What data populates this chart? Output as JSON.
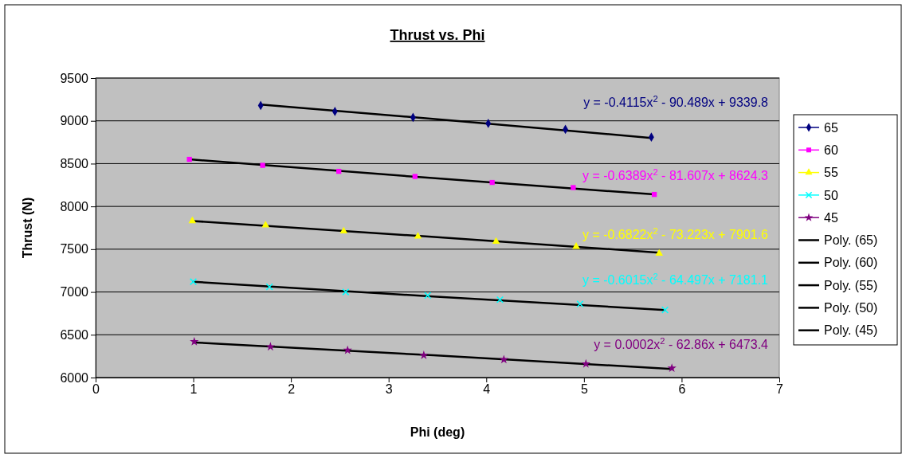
{
  "chart_data": {
    "type": "scatter",
    "title": "Thrust vs. Phi",
    "xlabel": "Phi (deg)",
    "ylabel": "Thrust (N)",
    "xlim": [
      0,
      7
    ],
    "xticks": [
      0,
      1,
      2,
      3,
      4,
      5,
      6,
      7
    ],
    "ylim": [
      6000,
      9500
    ],
    "yticks": [
      6000,
      6500,
      7000,
      7500,
      8000,
      8500,
      9000,
      9500
    ],
    "grid": "y",
    "legend": "right",
    "line_style": "solid",
    "series": [
      {
        "name": "65",
        "color": "#000080",
        "marker": "diamond",
        "x": [
          1.69,
          2.45,
          3.25,
          4.02,
          4.81,
          5.69
        ],
        "values": [
          9180,
          9110,
          9040,
          8970,
          8900,
          8810
        ]
      },
      {
        "name": "60",
        "color": "#ff00ff",
        "marker": "square",
        "x": [
          0.96,
          1.71,
          2.49,
          3.27,
          4.06,
          4.89,
          5.72
        ],
        "values": [
          8550,
          8480,
          8410,
          8350,
          8280,
          8220,
          8140
        ]
      },
      {
        "name": "55",
        "color": "#ffff00",
        "marker": "triangle",
        "x": [
          0.99,
          1.74,
          2.54,
          3.3,
          4.1,
          4.92,
          5.77
        ],
        "values": [
          7830,
          7780,
          7710,
          7650,
          7590,
          7530,
          7450
        ]
      },
      {
        "name": "50",
        "color": "#00ffff",
        "marker": "cross",
        "x": [
          1.0,
          1.78,
          2.56,
          3.4,
          4.14,
          4.96,
          5.83
        ],
        "values": [
          7120,
          7060,
          7000,
          6960,
          6910,
          6860,
          6790
        ]
      },
      {
        "name": "45",
        "color": "#800080",
        "marker": "star",
        "x": [
          1.01,
          1.79,
          2.58,
          3.36,
          4.18,
          5.02,
          5.9
        ],
        "values": [
          6420,
          6360,
          6320,
          6260,
          6210,
          6160,
          6110
        ]
      },
      {
        "name": "Poly. (65)",
        "type": "line",
        "color": "#000000",
        "marker": "none",
        "x": [
          1.69,
          3.69,
          5.69
        ],
        "values": [
          9190,
          9000,
          8800
        ]
      },
      {
        "name": "Poly. (60)",
        "type": "line",
        "color": "#000000",
        "marker": "none",
        "x": [
          0.96,
          3.34,
          5.72
        ],
        "values": [
          8550,
          8340,
          8140
        ]
      },
      {
        "name": "Poly. (55)",
        "type": "line",
        "color": "#000000",
        "marker": "none",
        "x": [
          0.99,
          3.38,
          5.77
        ],
        "values": [
          7830,
          7650,
          7460
        ]
      },
      {
        "name": "Poly. (50)",
        "type": "line",
        "color": "#000000",
        "marker": "none",
        "x": [
          1.0,
          3.42,
          5.83
        ],
        "values": [
          7120,
          6950,
          6790
        ]
      },
      {
        "name": "Poly. (45)",
        "type": "line",
        "color": "#000000",
        "marker": "none",
        "x": [
          1.01,
          3.46,
          5.9
        ],
        "values": [
          6410,
          6260,
          6100
        ]
      }
    ],
    "annotations": [
      "y = -0.4115x$^{2}$ - 90.489x + 9339.8",
      "y = -0.6389x$^{2}$ - 81.607x + 8624.3",
      "y = -0.6822x$^{2}$ - 73.223x + 7901.6",
      "y = -0.6015x$^{2}$ - 64.497x + 7181.1",
      "y = 0.0002x$^{2}$ - 62.86x + 6473.4"
    ]
  }
}
